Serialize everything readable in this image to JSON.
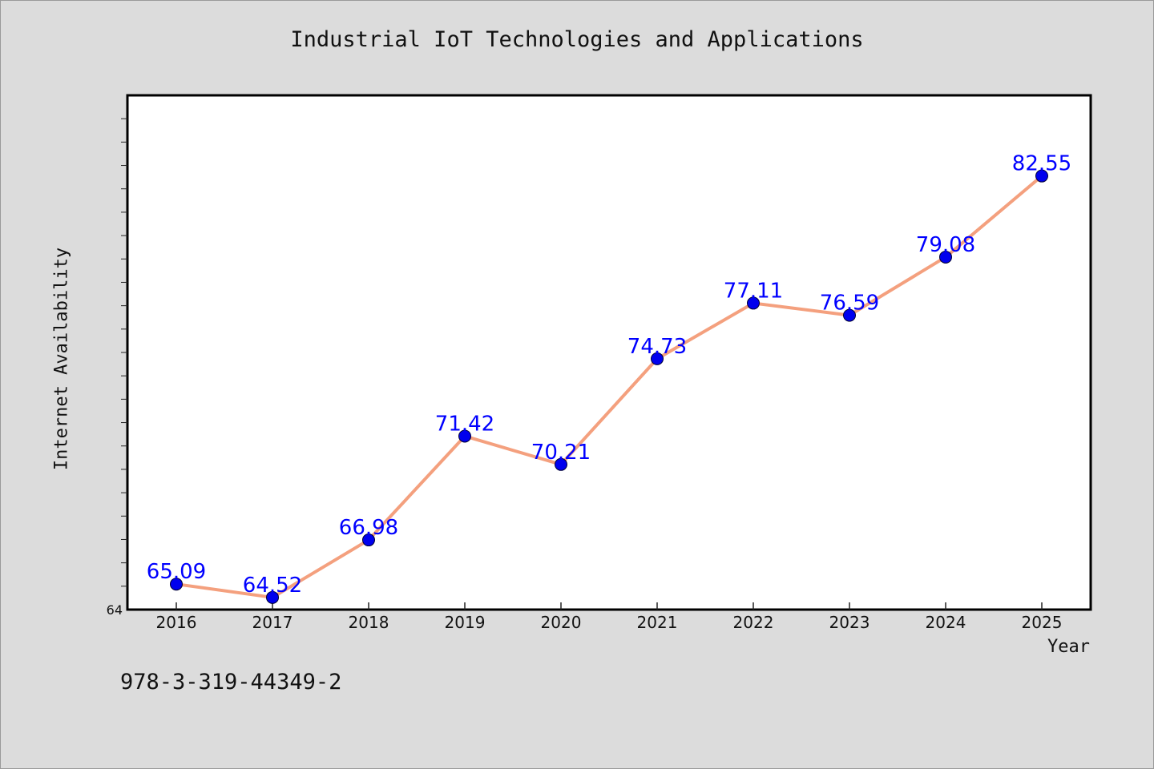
{
  "chart_data": {
    "type": "line",
    "title": "Industrial IoT Technologies and Applications",
    "xlabel": "Year",
    "ylabel": "Internet Availability",
    "categories": [
      "2016",
      "2017",
      "2018",
      "2019",
      "2020",
      "2021",
      "2022",
      "2023",
      "2024",
      "2025"
    ],
    "series": [
      {
        "values": [
          65.09,
          64.52,
          66.98,
          71.42,
          70.21,
          74.73,
          77.11,
          76.59,
          79.08,
          82.55
        ]
      }
    ],
    "y_tick_labels": [
      "64"
    ],
    "ylim": [
      64,
      86
    ],
    "grid": false,
    "legend": "none",
    "data_labels": true
  },
  "footer_text": "978-3-319-44349-2",
  "colors": {
    "background": "#dcdcdc",
    "plot_background": "#ffffff",
    "line": "#f4a07e",
    "marker": "#0000ee",
    "data_label": "#0000ff"
  }
}
